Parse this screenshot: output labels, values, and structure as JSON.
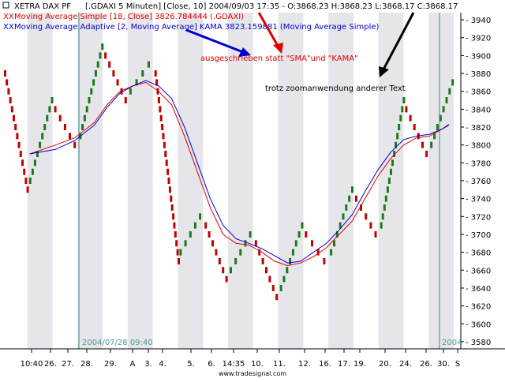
{
  "header": {
    "instrument": "XETRA DAX PF",
    "instrument_details": "[.GDAXI  5 Minuten] [Close, 10] 2004/09/03 17:35 - O:3868.23 H:3868.23 L:3868.17 C:3868.17",
    "sma_label": "Moving Average Simple [18, Close] 3826.784444 (.GDAXI)",
    "kama_label": "Moving Average Adaptive [2, Moving Average] KAMA 3823.159881 (Moving Average Simple)",
    "sma_marker": "XX",
    "kama_marker": "XX"
  },
  "annotations": [
    {
      "text": "ausgeschrieben statt \"SMA\"und \"KAMA\"",
      "color": "#e00000"
    },
    {
      "text": "trotz zoomanwendung anderer Text",
      "color": "#000000"
    }
  ],
  "footer": {
    "watermark": "www.tradesignal.com",
    "left_date_stamp": "2004/07/28 09:40",
    "right_date_stamp": "2004"
  },
  "colors": {
    "up_box": "#1a7a1a",
    "down_box": "#c00000",
    "sma": "#e00000",
    "kama": "#0000d0",
    "band": "#e6e6ea",
    "cursor_line": "#3a8a8a",
    "date_stamp": "#4a9a9a"
  },
  "chart_data": {
    "type": "point-and-figure",
    "box_size": 10,
    "ylim": [
      3572,
      3948
    ],
    "y_ticks": [
      3580,
      3600,
      3620,
      3640,
      3660,
      3680,
      3700,
      3720,
      3740,
      3760,
      3780,
      3800,
      3820,
      3840,
      3860,
      3880,
      3900,
      3920,
      3940
    ],
    "x_labels": [
      "10:40",
      "26.",
      "27.",
      "28.",
      "29.",
      "A",
      "3.",
      "4.",
      "5.",
      "6.",
      "14:35",
      "10.",
      "11.",
      "12.",
      "16.",
      "17.",
      "19.",
      "20.",
      "24.",
      "26.",
      "30.",
      "S"
    ],
    "columns": [
      {
        "dir": "down",
        "from": 3880,
        "to": 3750
      },
      {
        "dir": "up",
        "from": 3760,
        "to": 3850
      },
      {
        "dir": "down",
        "from": 3840,
        "to": 3800
      },
      {
        "dir": "up",
        "from": 3810,
        "to": 3910
      },
      {
        "dir": "down",
        "from": 3900,
        "to": 3850
      },
      {
        "dir": "up",
        "from": 3860,
        "to": 3890
      },
      {
        "dir": "down",
        "from": 3880,
        "to": 3670
      },
      {
        "dir": "up",
        "from": 3680,
        "to": 3720
      },
      {
        "dir": "down",
        "from": 3710,
        "to": 3650
      },
      {
        "dir": "up",
        "from": 3660,
        "to": 3700
      },
      {
        "dir": "down",
        "from": 3690,
        "to": 3630
      },
      {
        "dir": "up",
        "from": 3640,
        "to": 3710
      },
      {
        "dir": "down",
        "from": 3700,
        "to": 3670
      },
      {
        "dir": "up",
        "from": 3680,
        "to": 3750
      },
      {
        "dir": "down",
        "from": 3740,
        "to": 3700
      },
      {
        "dir": "up",
        "from": 3710,
        "to": 3850
      },
      {
        "dir": "down",
        "from": 3840,
        "to": 3790
      },
      {
        "dir": "up",
        "from": 3800,
        "to": 3870
      }
    ],
    "sma": [
      [
        4,
        3790
      ],
      [
        8,
        3800
      ],
      [
        11,
        3808
      ],
      [
        14,
        3825
      ],
      [
        16,
        3845
      ],
      [
        18,
        3860
      ],
      [
        20,
        3866
      ],
      [
        22,
        3870
      ],
      [
        24,
        3860
      ],
      [
        26,
        3845
      ],
      [
        28,
        3810
      ],
      [
        30,
        3770
      ],
      [
        32,
        3730
      ],
      [
        34,
        3700
      ],
      [
        36,
        3690
      ],
      [
        38,
        3688
      ],
      [
        40,
        3680
      ],
      [
        42,
        3670
      ],
      [
        44,
        3665
      ],
      [
        46,
        3668
      ],
      [
        48,
        3675
      ],
      [
        50,
        3685
      ],
      [
        52,
        3700
      ],
      [
        54,
        3715
      ],
      [
        56,
        3740
      ],
      [
        58,
        3765
      ],
      [
        60,
        3785
      ],
      [
        62,
        3800
      ],
      [
        64,
        3808
      ],
      [
        66,
        3810
      ],
      [
        68,
        3818
      ],
      [
        69,
        3822
      ]
    ],
    "kama": [
      [
        4,
        3790
      ],
      [
        8,
        3795
      ],
      [
        11,
        3805
      ],
      [
        14,
        3822
      ],
      [
        16,
        3842
      ],
      [
        18,
        3858
      ],
      [
        20,
        3866
      ],
      [
        22,
        3872
      ],
      [
        24,
        3866
      ],
      [
        26,
        3852
      ],
      [
        28,
        3820
      ],
      [
        30,
        3780
      ],
      [
        32,
        3740
      ],
      [
        34,
        3710
      ],
      [
        36,
        3695
      ],
      [
        38,
        3690
      ],
      [
        40,
        3684
      ],
      [
        42,
        3676
      ],
      [
        44,
        3668
      ],
      [
        46,
        3670
      ],
      [
        48,
        3680
      ],
      [
        50,
        3690
      ],
      [
        52,
        3705
      ],
      [
        54,
        3722
      ],
      [
        56,
        3748
      ],
      [
        58,
        3772
      ],
      [
        60,
        3792
      ],
      [
        62,
        3806
      ],
      [
        64,
        3810
      ],
      [
        66,
        3812
      ],
      [
        68,
        3818
      ],
      [
        69,
        3823
      ]
    ],
    "grid": false,
    "legend": "top-left"
  }
}
